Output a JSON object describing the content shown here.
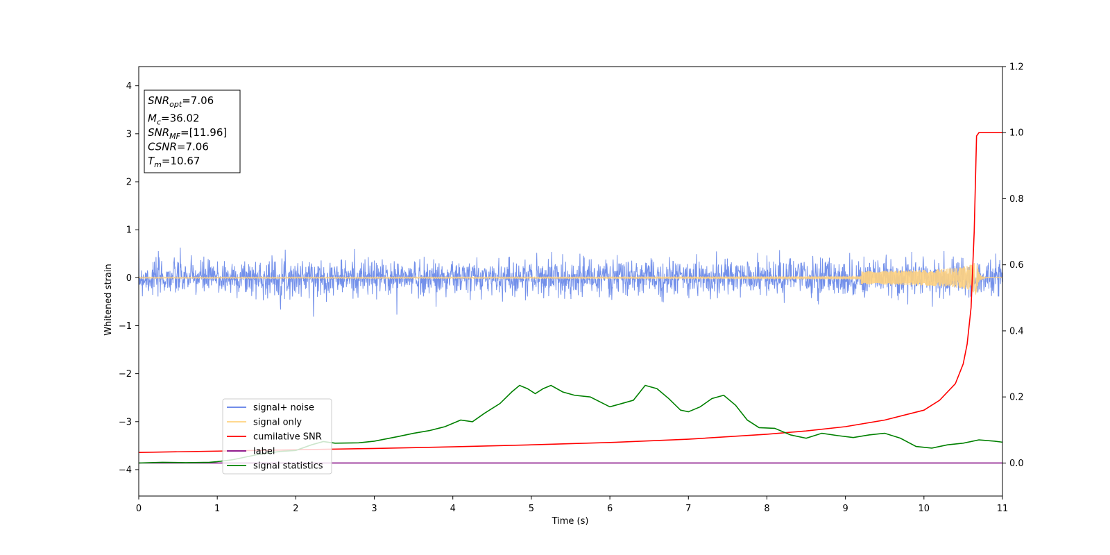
{
  "chart_data": {
    "type": "line",
    "xlabel": "Time (s)",
    "ylabel": "Whitened strain",
    "xlim": [
      0,
      11
    ],
    "ylim_left": [
      -4.55,
      4.4
    ],
    "ylim_right": [
      -0.1,
      1.2
    ],
    "xticks": [
      0,
      1,
      2,
      3,
      4,
      5,
      6,
      7,
      8,
      9,
      10,
      11
    ],
    "yticks_left": [
      -4,
      -3,
      -2,
      -1,
      0,
      1,
      2,
      3,
      4
    ],
    "yticks_right": [
      "0.0",
      "0.2",
      "0.4",
      "0.6",
      "0.8",
      "1.0",
      "1.2"
    ],
    "legend": {
      "placement": "lower-left",
      "entries": [
        {
          "label": "signal+ noise",
          "color": "#5b7ce6"
        },
        {
          "label": "signal only",
          "color": "#ffd27f"
        },
        {
          "label": "cumilative SNR",
          "color": "#ff0000"
        },
        {
          "label": "label",
          "color": "#800080"
        },
        {
          "label": "signal statistics",
          "color": "#008000"
        }
      ]
    },
    "annotation": [
      {
        "base": "SNR",
        "sub": "opt",
        "value": "=7.06"
      },
      {
        "base": "M",
        "sub": "c",
        "value": "=36.02"
      },
      {
        "base": "SNR",
        "sub": "MF",
        "value": "=[11.96]"
      },
      {
        "base": "CSNR",
        "sub": "",
        "value": "=7.06"
      },
      {
        "base": "T",
        "sub": "m",
        "value": "=10.67"
      }
    ],
    "series": [
      {
        "name": "signal+ noise",
        "axis": "left",
        "color": "#5b7ce6",
        "description_values": {
          "amplitude_typical": 0.45,
          "amplitude_peak": 0.85
        }
      },
      {
        "name": "signal only",
        "axis": "left",
        "color": "#ffd27f",
        "merger_time": 10.67,
        "peak_amplitude": 0.4
      },
      {
        "name": "cumilative SNR",
        "axis": "right",
        "color": "#ff0000",
        "x": [
          0,
          1,
          2,
          3,
          4,
          5,
          6,
          7,
          8,
          8.5,
          9,
          9.5,
          10,
          10.2,
          10.4,
          10.5,
          10.55,
          10.6,
          10.64,
          10.67,
          10.7,
          11
        ],
        "y": [
          0.032,
          0.036,
          0.04,
          0.044,
          0.049,
          0.055,
          0.062,
          0.072,
          0.087,
          0.097,
          0.11,
          0.13,
          0.16,
          0.19,
          0.24,
          0.3,
          0.36,
          0.47,
          0.7,
          0.99,
          1.0,
          1.0
        ]
      },
      {
        "name": "label",
        "axis": "right",
        "color": "#800080",
        "x": [
          0,
          11
        ],
        "y": [
          0,
          0
        ]
      },
      {
        "name": "signal statistics",
        "axis": "right",
        "color": "#008000",
        "x": [
          0,
          0.3,
          0.6,
          0.9,
          1.0,
          1.2,
          1.5,
          1.8,
          2.0,
          2.2,
          2.35,
          2.5,
          2.8,
          3.0,
          3.3,
          3.5,
          3.7,
          3.9,
          4.1,
          4.25,
          4.4,
          4.6,
          4.75,
          4.85,
          4.95,
          5.05,
          5.15,
          5.25,
          5.4,
          5.55,
          5.75,
          6.0,
          6.15,
          6.3,
          6.45,
          6.6,
          6.75,
          6.9,
          7.0,
          7.15,
          7.3,
          7.45,
          7.6,
          7.75,
          7.9,
          8.1,
          8.3,
          8.5,
          8.7,
          8.9,
          9.1,
          9.3,
          9.5,
          9.7,
          9.9,
          10.1,
          10.3,
          10.5,
          10.7,
          10.9,
          11.0
        ],
        "y": [
          0.0,
          0.002,
          0.001,
          0.002,
          0.004,
          0.01,
          0.025,
          0.035,
          0.038,
          0.055,
          0.065,
          0.06,
          0.061,
          0.066,
          0.08,
          0.09,
          0.098,
          0.11,
          0.13,
          0.125,
          0.15,
          0.18,
          0.215,
          0.235,
          0.225,
          0.21,
          0.225,
          0.235,
          0.215,
          0.205,
          0.2,
          0.17,
          0.18,
          0.19,
          0.235,
          0.225,
          0.195,
          0.16,
          0.155,
          0.17,
          0.195,
          0.205,
          0.175,
          0.13,
          0.107,
          0.105,
          0.085,
          0.075,
          0.09,
          0.083,
          0.077,
          0.085,
          0.09,
          0.075,
          0.05,
          0.045,
          0.055,
          0.06,
          0.07,
          0.066,
          0.063
        ]
      }
    ]
  }
}
